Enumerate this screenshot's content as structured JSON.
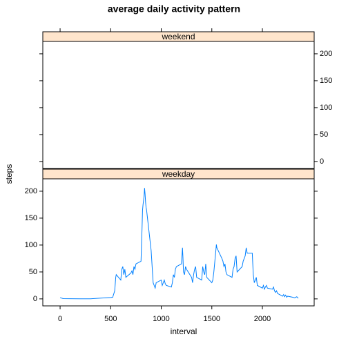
{
  "chart_data": {
    "type": "line",
    "title": "average daily activity pattern",
    "xlabel": "interval",
    "ylabel": "steps",
    "xlim": [
      -171,
      2512
    ],
    "ylim": [
      -13,
      223
    ],
    "xticks": [
      0,
      500,
      1000,
      1500,
      2000
    ],
    "yticks": [
      0,
      50,
      100,
      150,
      200
    ],
    "color": "#0080ff",
    "strip_color": "#ffe5cc",
    "panels": [
      {
        "strip": "weekend"
      },
      {
        "strip": "weekday",
        "x": [
          0,
          30,
          100,
          200,
          300,
          400,
          500,
          520,
          540,
          550,
          555,
          600,
          610,
          620,
          630,
          640,
          650,
          700,
          710,
          720,
          730,
          740,
          750,
          800,
          810,
          815,
          820,
          830,
          835,
          840,
          845,
          850,
          855,
          900,
          910,
          915,
          920,
          930,
          940,
          950,
          1000,
          1010,
          1020,
          1030,
          1040,
          1050,
          1100,
          1110,
          1120,
          1130,
          1140,
          1150,
          1200,
          1210,
          1215,
          1220,
          1230,
          1240,
          1250,
          1300,
          1310,
          1320,
          1330,
          1340,
          1350,
          1400,
          1410,
          1420,
          1430,
          1440,
          1450,
          1500,
          1510,
          1520,
          1530,
          1540,
          1545,
          1550,
          1600,
          1610,
          1620,
          1630,
          1640,
          1650,
          1700,
          1710,
          1720,
          1730,
          1740,
          1750,
          1800,
          1810,
          1820,
          1830,
          1840,
          1850,
          1900,
          1910,
          1920,
          1930,
          1940,
          1950,
          2000,
          2010,
          2020,
          2030,
          2040,
          2050,
          2100,
          2110,
          2120,
          2130,
          2140,
          2150,
          2200,
          2210,
          2220,
          2230,
          2240,
          2250,
          2300,
          2320,
          2340,
          2355
        ],
        "values": [
          2.3,
          0.5,
          0.3,
          0.1,
          0.2,
          1.5,
          2.5,
          3,
          15,
          40,
          45,
          35,
          55,
          60,
          45,
          55,
          40,
          48,
          52,
          45,
          60,
          55,
          65,
          70,
          130,
          165,
          175,
          190,
          206,
          195,
          180,
          170,
          165,
          90,
          60,
          45,
          30,
          25,
          20,
          30,
          35,
          25,
          30,
          35,
          28,
          25,
          22,
          30,
          45,
          40,
          55,
          60,
          65,
          95,
          75,
          50,
          45,
          60,
          55,
          40,
          30,
          45,
          55,
          60,
          40,
          35,
          60,
          50,
          45,
          65,
          40,
          30,
          35,
          50,
          70,
          90,
          101,
          95,
          75,
          70,
          60,
          65,
          50,
          45,
          40,
          55,
          60,
          75,
          80,
          50,
          60,
          70,
          75,
          80,
          95,
          85,
          85,
          45,
          30,
          35,
          40,
          25,
          20,
          25,
          18,
          22,
          25,
          20,
          18,
          22,
          15,
          12,
          15,
          10,
          5,
          8,
          4,
          7,
          3,
          5,
          3,
          2,
          4,
          1
        ]
      }
    ]
  }
}
